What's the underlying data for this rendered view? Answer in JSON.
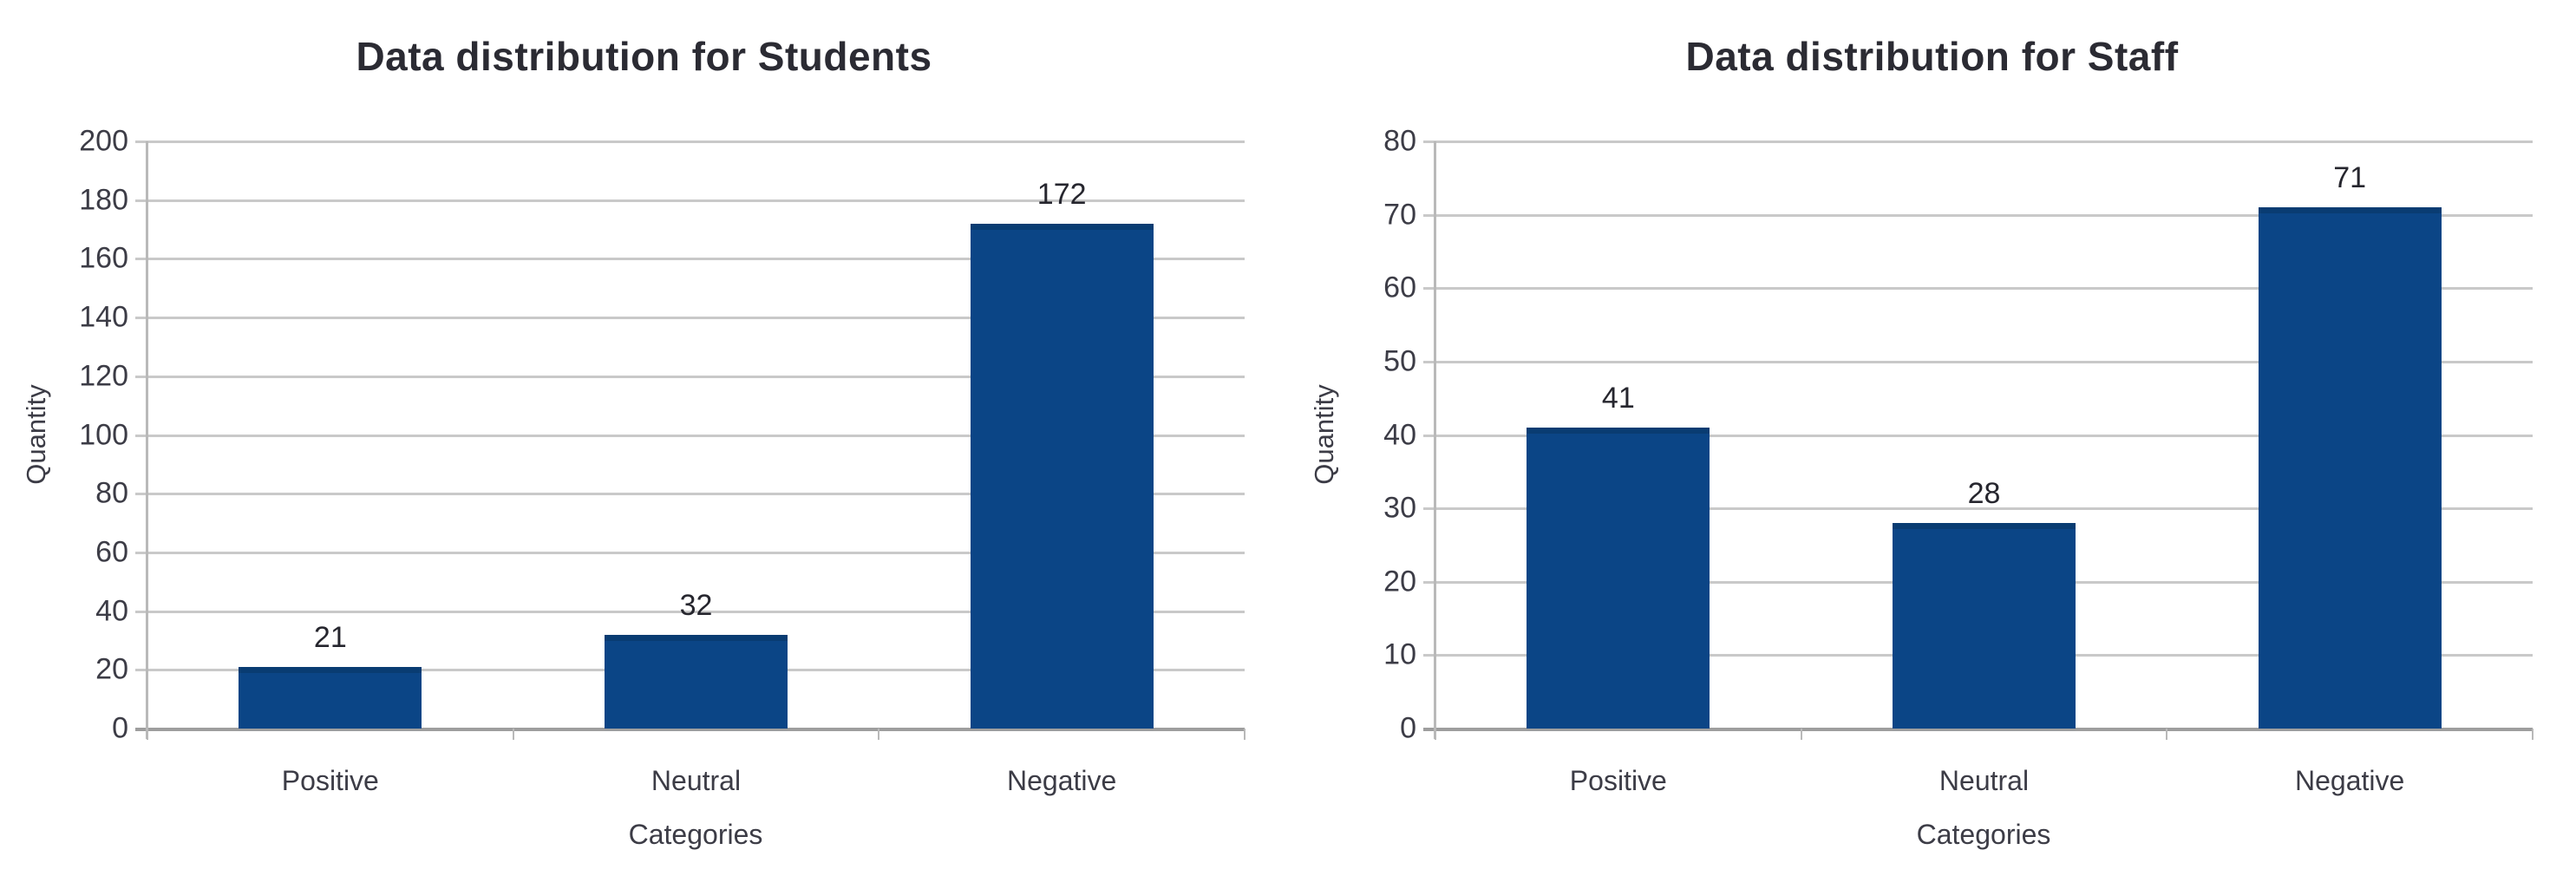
{
  "page": {
    "background": "#ffffff"
  },
  "chart_data": [
    {
      "type": "bar",
      "title": "Data distribution for Students",
      "categories": [
        "Positive",
        "Neutral",
        "Negative"
      ],
      "values": [
        21,
        32,
        172
      ],
      "xlabel": "Categories",
      "ylabel": "Quantity",
      "ylim": [
        0,
        200
      ],
      "ytick_step": 20,
      "grid": true,
      "legend": "none",
      "bar_color": "#0b4586",
      "bar_edge_color": "#093c72",
      "gridline_color": "#c9c9c9",
      "zero_line_color": "#9e9e9e",
      "text_color": "#3c3c46"
    },
    {
      "type": "bar",
      "title": "Data distribution for Staff",
      "categories": [
        "Positive",
        "Neutral",
        "Negative"
      ],
      "values": [
        41,
        28,
        71
      ],
      "xlabel": "Categories",
      "ylabel": "Quantity",
      "ylim": [
        0,
        80
      ],
      "ytick_step": 10,
      "grid": true,
      "legend": "none",
      "bar_color": "#0b4586",
      "bar_edge_color": "#093c72",
      "gridline_color": "#c9c9c9",
      "zero_line_color": "#9e9e9e",
      "text_color": "#3c3c46"
    }
  ]
}
